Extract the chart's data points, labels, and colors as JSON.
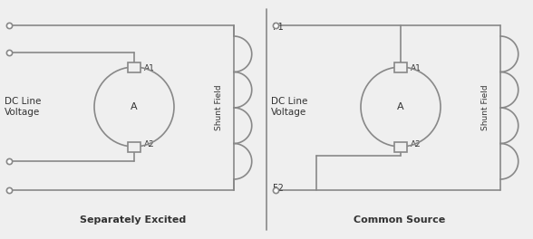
{
  "bg_color": "#efefef",
  "line_color": "#888888",
  "line_width": 1.2,
  "text_color": "#333333",
  "label1": "Separately Excited",
  "label2": "Common Source",
  "dc_line_label": "DC Line\nVoltage",
  "shunt_field_label": "Shunt Field",
  "f1_label": "F1",
  "f2_label": "F2",
  "a1_label": "A1",
  "a2_label": "A2",
  "motor_label": "A",
  "font_size_title": 8.0,
  "font_size_label": 7.0,
  "font_size_terminal": 6.5,
  "font_size_dc": 7.5
}
